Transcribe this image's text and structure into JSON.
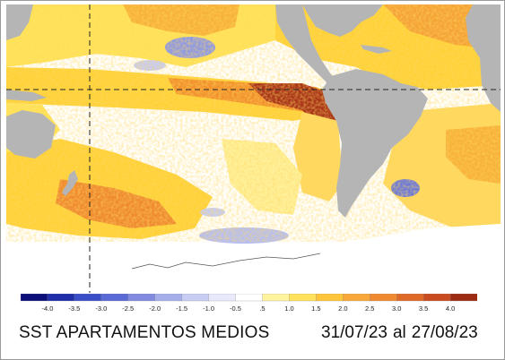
{
  "caption": {
    "title": "SST APARTAMENTOS MEDIOS",
    "start_date": "31/07/23",
    "connector": "al",
    "end_date": "27/08/23"
  },
  "legend": {
    "ticks": [
      "-4.0",
      "-3.5",
      "-3.0",
      "-2.5",
      "-2.0",
      "-1.5",
      "-1.0",
      "-0.5",
      ".5",
      "1.0",
      "1.5",
      "2.0",
      "2.5",
      "3.0",
      "3.5",
      "4.0"
    ],
    "colors": [
      "#0a0f7a",
      "#1f2ea8",
      "#3a4ec8",
      "#5a6ad6",
      "#7f8ae0",
      "#a6aeea",
      "#c8cdf3",
      "#e8eafb",
      "#ffffff",
      "#fff3a0",
      "#ffe15a",
      "#ffc53a",
      "#f8a838",
      "#ef8a30",
      "#df6a28",
      "#c94c20",
      "#9e2c12"
    ]
  },
  "map": {
    "ocean_neutral_color": "#ffffff",
    "land_color": "#b5b5b5",
    "anomaly_colors": {
      "weak_warm": "#fff3a0",
      "warm": "#ffd23a",
      "strong_warm": "#f49a2c",
      "very_strong_warm": "#a83418",
      "cool": "#b8bff0",
      "strong_cool": "#6e7ad6"
    }
  }
}
